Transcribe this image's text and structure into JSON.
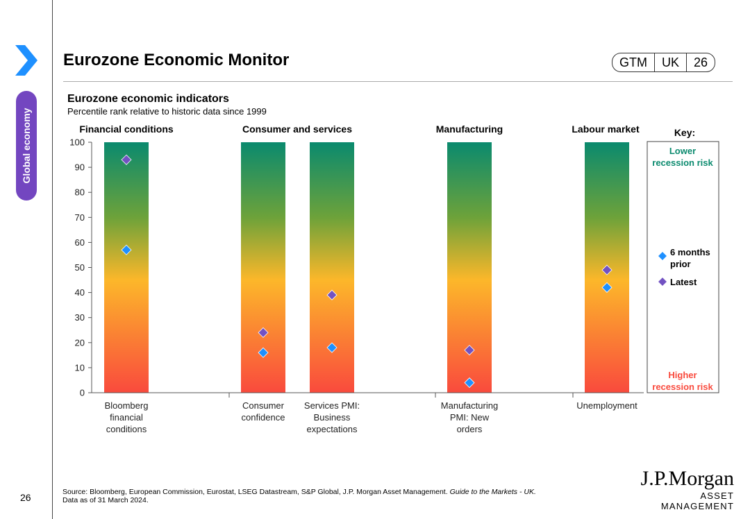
{
  "section_label": "Global economy",
  "page_number": "26",
  "page_title": "Eurozone Economic Monitor",
  "badge": {
    "region": "GTM",
    "country": "UK",
    "page": "26"
  },
  "chart_data": {
    "type": "scatter",
    "title": "Eurozone economic indicators",
    "subtitle": "Percentile rank relative to historic data since 1999",
    "ylim": [
      0,
      100
    ],
    "yticks": [
      "0",
      "10",
      "20",
      "30",
      "40",
      "50",
      "60",
      "70",
      "80",
      "90",
      "100"
    ],
    "groups": [
      "Financial conditions",
      "Consumer and services",
      "Manufacturing",
      "Labour market"
    ],
    "categories": [
      "Bloomberg financial conditions",
      "Consumer confidence",
      "Services PMI: Business expectations",
      "Manufacturing PMI: New orders",
      "Unemployment"
    ],
    "category_lines": [
      [
        "Bloomberg",
        "financial",
        "conditions"
      ],
      [
        "Consumer",
        "confidence"
      ],
      [
        "Services PMI:",
        "Business",
        "expectations"
      ],
      [
        "Manufacturing",
        "PMI: New",
        "orders"
      ],
      [
        "Unemployment"
      ]
    ],
    "series": [
      {
        "name": "6 months prior",
        "color": "#1e90ff",
        "values": [
          57,
          16,
          18,
          4,
          42
        ]
      },
      {
        "name": "Latest",
        "color": "#7252c2",
        "values": [
          93,
          24,
          39,
          17,
          49
        ]
      }
    ],
    "key": {
      "title": "Key:",
      "top_lines": [
        "Lower",
        "recession risk"
      ],
      "bottom_lines": [
        "Higher",
        "recession risk"
      ],
      "legend_6m_lines": [
        "6 months",
        "prior"
      ],
      "legend_latest": "Latest"
    }
  },
  "colors": {
    "top": "#0a8a6e",
    "upper": "#6da23a",
    "middle": "#fcb72a",
    "bottom": "#f94a3d",
    "accent": "#7346c0",
    "chevron": "#1e90ff"
  },
  "footer": {
    "source_text": "Source: Bloomberg, European Commission, Eurostat, LSEG Datastream, S&P Global, J.P. Morgan Asset Management. ",
    "source_italic": "Guide to the Markets - UK.",
    "data_date": "Data as of 31 March 2024."
  },
  "logo": {
    "main": "J.P.Morgan",
    "sub": "ASSET MANAGEMENT"
  }
}
